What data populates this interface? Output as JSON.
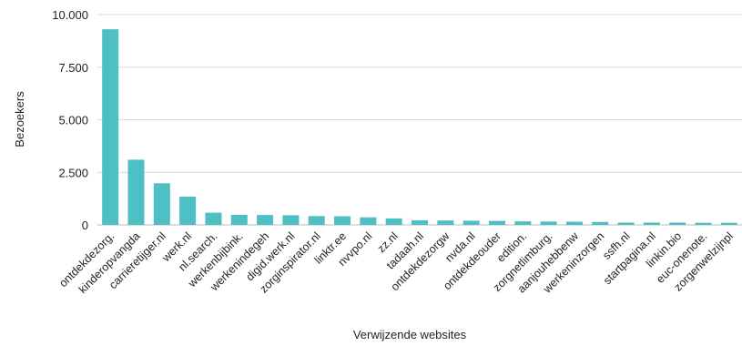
{
  "chart_data": {
    "type": "bar",
    "title": "",
    "xlabel": "Verwijzende websites",
    "ylabel": "Bezoekers",
    "ylim": [
      0,
      10000
    ],
    "yticks": [
      0,
      2500,
      5000,
      7500,
      10000
    ],
    "ytick_labels": [
      "0",
      "2.500",
      "5.000",
      "7.500",
      "10.000"
    ],
    "grid": true,
    "legend": "none",
    "bar_color": "#4dbfc5",
    "grid_color": "#d9d9d9",
    "categories": [
      "ontdekdezorg.",
      "kinderopvangda",
      "carrieretijger.nl",
      "werk.nl",
      "nl.search.",
      "werkenbijbink.",
      "werkenindegeh",
      "digid.werk.nl",
      "zorginspirator.nl",
      "linktr.ee",
      "nvvpo.nl",
      "zz.nl",
      "tadaah.nl",
      "ontdekdezorgw",
      "nvda.nl",
      "ontdekdeouder",
      "edition.",
      "zorgnetlimburg.",
      "aanjouhebbenw",
      "werkeninzorgen",
      "ssfh.nl",
      "startpagina.nl",
      "linkin.bio",
      "euc-onenote.",
      "zorgenwelzijnpl"
    ],
    "values": [
      9300,
      3100,
      1980,
      1340,
      580,
      480,
      470,
      460,
      420,
      410,
      360,
      310,
      220,
      210,
      200,
      190,
      170,
      160,
      150,
      140,
      110,
      110,
      110,
      100,
      100
    ]
  }
}
